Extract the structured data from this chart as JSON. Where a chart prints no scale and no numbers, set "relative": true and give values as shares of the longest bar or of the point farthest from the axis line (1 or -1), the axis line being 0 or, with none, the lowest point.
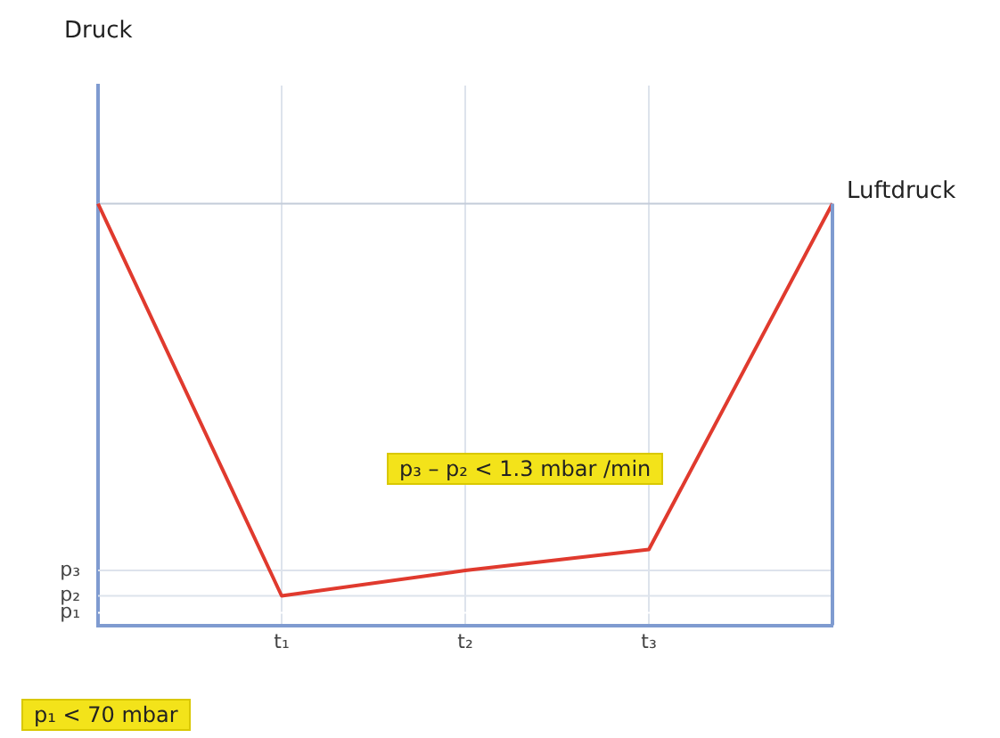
{
  "chart_data": {
    "type": "line",
    "relative": true,
    "categories": [
      null,
      "t₁",
      "t₂",
      "t₃",
      null
    ],
    "series": [
      {
        "color": "#e03a2e",
        "values": [
          1,
          0.07,
          0.13,
          0.18,
          1
        ]
      }
    ],
    "grid": "x",
    "marker": "none",
    "line_style": "solid",
    "legend": false,
    "ref_lines": [
      {
        "axis": "y",
        "value": 0.03,
        "label": "p₁",
        "color": "#ffffff"
      },
      {
        "axis": "y",
        "value": 0.07,
        "label": "p₂",
        "color": "#dde3ec"
      },
      {
        "axis": "y",
        "value": 0.13,
        "label": "p₃",
        "color": "#dde3ec"
      },
      {
        "axis": "y",
        "value": 1,
        "label": "Luftdruck",
        "color": "#c3ccd9"
      }
    ],
    "annotations": [
      "Druck",
      "p₁ < 70 mbar",
      "p₃ – p₂ < 1.3 mbar /min"
    ]
  }
}
